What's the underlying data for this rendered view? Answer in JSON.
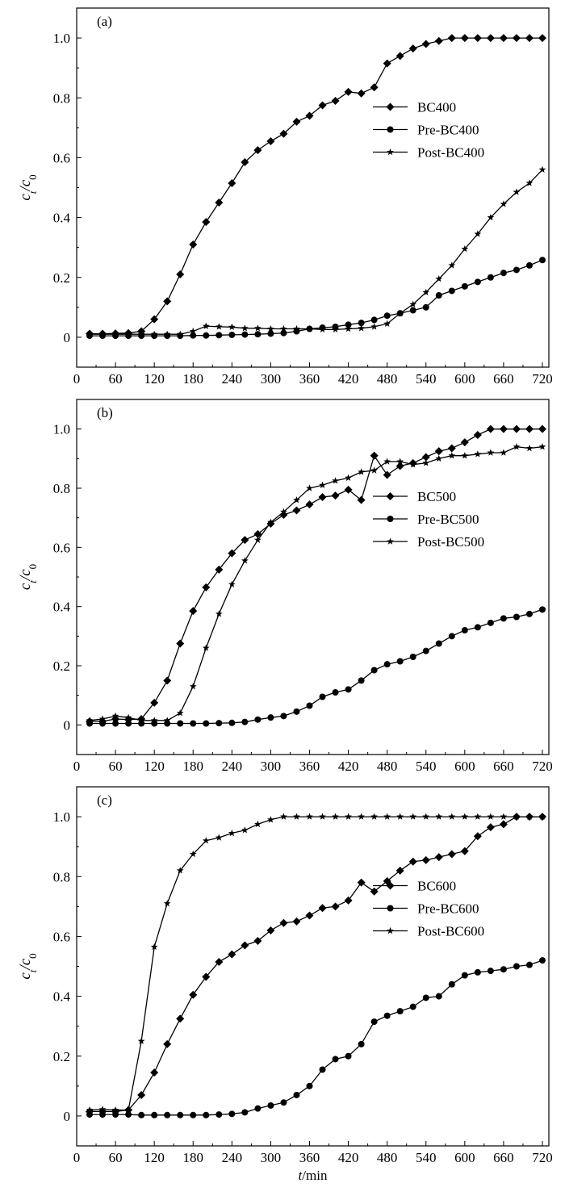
{
  "chart_data": [
    {
      "type": "line",
      "panel_label": "(a)",
      "ylabel": "c_t/c_0",
      "xlabel": "",
      "xlim": [
        0,
        730
      ],
      "ylim": [
        -0.1,
        1.1
      ],
      "xticks": [
        "0",
        "60",
        "120",
        "180",
        "240",
        "300",
        "360",
        "420",
        "480",
        "540",
        "600",
        "660",
        "720"
      ],
      "yticks": [
        "0",
        "0.2",
        "0.4",
        "0.6",
        "0.8",
        "1.0"
      ],
      "legend_position": "right-center",
      "series": [
        {
          "name": "BC400",
          "marker": "diamond",
          "x": [
            20,
            40,
            60,
            80,
            100,
            120,
            140,
            160,
            180,
            200,
            220,
            240,
            260,
            280,
            300,
            320,
            340,
            360,
            380,
            400,
            420,
            440,
            460,
            480,
            500,
            520,
            540,
            560,
            580,
            600,
            620,
            640,
            660,
            680,
            700,
            720
          ],
          "y": [
            0.012,
            0.012,
            0.013,
            0.014,
            0.02,
            0.06,
            0.12,
            0.21,
            0.31,
            0.385,
            0.45,
            0.515,
            0.585,
            0.625,
            0.655,
            0.68,
            0.72,
            0.74,
            0.775,
            0.79,
            0.82,
            0.815,
            0.835,
            0.915,
            0.94,
            0.965,
            0.98,
            0.99,
            1.0,
            1.0,
            1.0,
            1.0,
            1.0,
            1.0,
            1.0,
            1.0
          ]
        },
        {
          "name": "Pre-BC400",
          "marker": "circle",
          "x": [
            20,
            40,
            60,
            80,
            100,
            120,
            140,
            160,
            180,
            200,
            220,
            240,
            260,
            280,
            300,
            320,
            340,
            360,
            380,
            400,
            420,
            440,
            460,
            480,
            500,
            520,
            540,
            560,
            580,
            600,
            620,
            640,
            660,
            680,
            700,
            720
          ],
          "y": [
            0.005,
            0.005,
            0.005,
            0.005,
            0.005,
            0.005,
            0.005,
            0.005,
            0.006,
            0.006,
            0.007,
            0.008,
            0.009,
            0.01,
            0.012,
            0.014,
            0.02,
            0.028,
            0.032,
            0.035,
            0.042,
            0.048,
            0.058,
            0.072,
            0.08,
            0.09,
            0.1,
            0.14,
            0.155,
            0.17,
            0.185,
            0.2,
            0.215,
            0.225,
            0.24,
            0.258
          ]
        },
        {
          "name": "Post-BC400",
          "marker": "star",
          "x": [
            20,
            40,
            60,
            80,
            100,
            120,
            140,
            160,
            180,
            200,
            220,
            240,
            260,
            280,
            300,
            320,
            340,
            360,
            380,
            400,
            420,
            440,
            460,
            480,
            500,
            520,
            540,
            560,
            580,
            600,
            620,
            640,
            660,
            680,
            700,
            720
          ],
          "y": [
            0.01,
            0.01,
            0.01,
            0.01,
            0.01,
            0.01,
            0.01,
            0.01,
            0.02,
            0.037,
            0.035,
            0.034,
            0.03,
            0.03,
            0.028,
            0.028,
            0.028,
            0.028,
            0.026,
            0.026,
            0.028,
            0.03,
            0.035,
            0.045,
            0.08,
            0.11,
            0.15,
            0.195,
            0.24,
            0.295,
            0.345,
            0.4,
            0.445,
            0.485,
            0.515,
            0.56
          ]
        }
      ]
    },
    {
      "type": "line",
      "panel_label": "(b)",
      "ylabel": "c_t/c_0",
      "xlabel": "",
      "xlim": [
        0,
        730
      ],
      "ylim": [
        -0.1,
        1.1
      ],
      "xticks": [
        "0",
        "60",
        "120",
        "180",
        "240",
        "300",
        "360",
        "420",
        "480",
        "540",
        "600",
        "660",
        "720"
      ],
      "yticks": [
        "0",
        "0.2",
        "0.4",
        "0.6",
        "0.8",
        "1.0"
      ],
      "legend_position": "right-center",
      "series": [
        {
          "name": "BC500",
          "marker": "diamond",
          "x": [
            20,
            40,
            60,
            80,
            100,
            120,
            140,
            160,
            180,
            200,
            220,
            240,
            260,
            280,
            300,
            320,
            340,
            360,
            380,
            400,
            420,
            440,
            460,
            480,
            500,
            520,
            540,
            560,
            580,
            600,
            620,
            640,
            660,
            680,
            700,
            720
          ],
          "y": [
            0.012,
            0.012,
            0.02,
            0.018,
            0.02,
            0.075,
            0.15,
            0.275,
            0.385,
            0.465,
            0.525,
            0.58,
            0.625,
            0.645,
            0.68,
            0.71,
            0.725,
            0.745,
            0.77,
            0.775,
            0.795,
            0.76,
            0.91,
            0.845,
            0.875,
            0.885,
            0.905,
            0.925,
            0.935,
            0.955,
            0.98,
            1.0,
            1.0,
            1.0,
            1.0,
            1.0
          ]
        },
        {
          "name": "Pre-BC500",
          "marker": "circle",
          "x": [
            20,
            40,
            60,
            80,
            100,
            120,
            140,
            160,
            180,
            200,
            220,
            240,
            260,
            280,
            300,
            320,
            340,
            360,
            380,
            400,
            420,
            440,
            460,
            480,
            500,
            520,
            540,
            560,
            580,
            600,
            620,
            640,
            660,
            680,
            700,
            720
          ],
          "y": [
            0.005,
            0.005,
            0.005,
            0.005,
            0.005,
            0.005,
            0.005,
            0.005,
            0.005,
            0.005,
            0.006,
            0.007,
            0.01,
            0.018,
            0.025,
            0.03,
            0.045,
            0.065,
            0.095,
            0.11,
            0.12,
            0.15,
            0.185,
            0.205,
            0.215,
            0.23,
            0.25,
            0.275,
            0.3,
            0.32,
            0.33,
            0.345,
            0.36,
            0.365,
            0.375,
            0.39
          ]
        },
        {
          "name": "Post-BC500",
          "marker": "star",
          "x": [
            20,
            40,
            60,
            80,
            100,
            120,
            140,
            160,
            180,
            200,
            220,
            240,
            260,
            280,
            300,
            320,
            340,
            360,
            380,
            400,
            420,
            440,
            460,
            480,
            500,
            520,
            540,
            560,
            580,
            600,
            620,
            640,
            660,
            680,
            700,
            720
          ],
          "y": [
            0.015,
            0.02,
            0.03,
            0.025,
            0.015,
            0.015,
            0.015,
            0.04,
            0.13,
            0.26,
            0.375,
            0.475,
            0.555,
            0.625,
            0.685,
            0.72,
            0.76,
            0.8,
            0.81,
            0.825,
            0.835,
            0.855,
            0.86,
            0.89,
            0.89,
            0.88,
            0.885,
            0.9,
            0.91,
            0.91,
            0.915,
            0.92,
            0.92,
            0.94,
            0.935,
            0.94
          ]
        }
      ]
    },
    {
      "type": "line",
      "panel_label": "(c)",
      "ylabel": "c_t/c_0",
      "xlabel": "t/min",
      "xlim": [
        0,
        730
      ],
      "ylim": [
        -0.1,
        1.1
      ],
      "xticks": [
        "0",
        "60",
        "120",
        "180",
        "240",
        "300",
        "360",
        "420",
        "480",
        "540",
        "600",
        "660",
        "720"
      ],
      "yticks": [
        "0",
        "0.2",
        "0.4",
        "0.6",
        "0.8",
        "1.0"
      ],
      "legend_position": "right-center",
      "series": [
        {
          "name": "BC600",
          "marker": "diamond",
          "x": [
            20,
            40,
            60,
            80,
            100,
            120,
            140,
            160,
            180,
            200,
            220,
            240,
            260,
            280,
            300,
            320,
            340,
            360,
            380,
            400,
            420,
            440,
            460,
            480,
            500,
            520,
            540,
            560,
            580,
            600,
            620,
            640,
            660,
            680,
            700,
            720
          ],
          "y": [
            0.015,
            0.015,
            0.015,
            0.02,
            0.07,
            0.145,
            0.24,
            0.325,
            0.405,
            0.465,
            0.515,
            0.54,
            0.57,
            0.585,
            0.62,
            0.645,
            0.65,
            0.67,
            0.695,
            0.7,
            0.72,
            0.78,
            0.75,
            0.785,
            0.82,
            0.85,
            0.855,
            0.865,
            0.875,
            0.885,
            0.935,
            0.965,
            0.975,
            1.0,
            1.0,
            1.0
          ]
        },
        {
          "name": "Pre-BC600",
          "marker": "circle",
          "x": [
            20,
            40,
            60,
            80,
            100,
            120,
            140,
            160,
            180,
            200,
            220,
            240,
            260,
            280,
            300,
            320,
            340,
            360,
            380,
            400,
            420,
            440,
            460,
            480,
            500,
            520,
            540,
            560,
            580,
            600,
            620,
            640,
            660,
            680,
            700,
            720
          ],
          "y": [
            0.005,
            0.005,
            0.005,
            0.005,
            0.003,
            0.003,
            0.003,
            0.003,
            0.003,
            0.003,
            0.005,
            0.007,
            0.012,
            0.025,
            0.035,
            0.045,
            0.07,
            0.1,
            0.155,
            0.19,
            0.2,
            0.24,
            0.315,
            0.335,
            0.35,
            0.365,
            0.395,
            0.4,
            0.44,
            0.47,
            0.48,
            0.485,
            0.49,
            0.5,
            0.505,
            0.52
          ]
        },
        {
          "name": "Post-BC600",
          "marker": "star",
          "x": [
            20,
            40,
            60,
            80,
            100,
            120,
            140,
            160,
            180,
            200,
            220,
            240,
            260,
            280,
            300,
            320,
            340,
            360,
            380,
            400,
            420,
            440,
            460,
            480,
            500,
            520,
            540,
            560,
            580,
            600,
            620,
            640,
            660,
            680,
            700,
            720
          ],
          "y": [
            0.02,
            0.022,
            0.02,
            0.02,
            0.25,
            0.565,
            0.71,
            0.82,
            0.875,
            0.92,
            0.93,
            0.945,
            0.955,
            0.975,
            0.99,
            1.0,
            1.0,
            1.0,
            1.0,
            1.0,
            1.0,
            1.0,
            1.0,
            1.0,
            1.0,
            1.0,
            1.0,
            1.0,
            1.0,
            1.0,
            1.0,
            1.0,
            1.0,
            1.0,
            1.0,
            1.0
          ]
        }
      ]
    }
  ]
}
